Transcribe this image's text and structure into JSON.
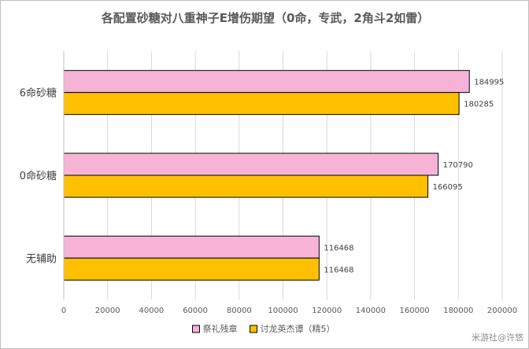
{
  "chart_data": {
    "type": "bar",
    "orientation": "horizontal",
    "title": "各配置砂糖对八重神子E增伤期望（0命，专武，2角斗2如雷）",
    "categories": [
      "6命砂糖",
      "0命砂糖",
      "无辅助"
    ],
    "series": [
      {
        "name": "祭礼残章",
        "color": "#F6B3D6",
        "values": [
          184995,
          170790,
          116468
        ]
      },
      {
        "name": "讨龙英杰谭（精5）",
        "color": "#FFC000",
        "values": [
          180285,
          166095,
          116468
        ]
      }
    ],
    "xlim": [
      0,
      200000
    ],
    "xticks": [
      0,
      20000,
      40000,
      60000,
      80000,
      100000,
      120000,
      140000,
      160000,
      180000,
      200000
    ],
    "grid": true,
    "legend": "bottom",
    "bar_outline_color": "#000000"
  },
  "watermark": "米游社@许悠"
}
